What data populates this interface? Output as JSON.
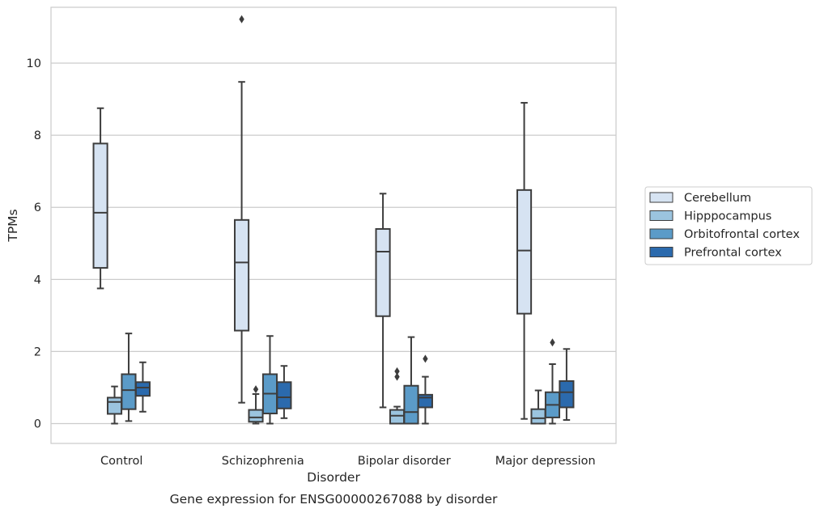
{
  "chart_data": {
    "type": "box",
    "caption": "Gene expression for ENSG00000267088 by disorder",
    "xlabel": "Disorder",
    "ylabel": "TPMs",
    "ylim": [
      -0.55,
      11.55
    ],
    "yticks": [
      0,
      2,
      4,
      6,
      8,
      10
    ],
    "grid": true,
    "legend_position": "right",
    "categories": [
      "Control",
      "Schizophrenia",
      "Bipolar disorder",
      "Major depression"
    ],
    "series": [
      {
        "name": "Cerebellum",
        "color": "#d6e3f2",
        "boxes": [
          {
            "whislo": 3.75,
            "q1": 4.32,
            "med": 5.85,
            "q3": 7.77,
            "whishi": 8.75,
            "fliers": []
          },
          {
            "whislo": 0.58,
            "q1": 2.58,
            "med": 4.47,
            "q3": 5.65,
            "whishi": 9.48,
            "fliers": [
              11.22
            ]
          },
          {
            "whislo": 0.45,
            "q1": 2.98,
            "med": 4.77,
            "q3": 5.4,
            "whishi": 6.38,
            "fliers": []
          },
          {
            "whislo": 0.13,
            "q1": 3.05,
            "med": 4.8,
            "q3": 6.48,
            "whishi": 8.9,
            "fliers": []
          }
        ]
      },
      {
        "name": "Hipppocampus",
        "color": "#9bc4df",
        "boxes": [
          {
            "whislo": 0.0,
            "q1": 0.27,
            "med": 0.6,
            "q3": 0.72,
            "whishi": 1.03,
            "fliers": []
          },
          {
            "whislo": 0.0,
            "q1": 0.05,
            "med": 0.17,
            "q3": 0.38,
            "whishi": 0.82,
            "fliers": [
              0.95
            ]
          },
          {
            "whislo": 0.0,
            "q1": 0.0,
            "med": 0.22,
            "q3": 0.38,
            "whishi": 0.47,
            "fliers": [
              1.3,
              1.45
            ]
          },
          {
            "whislo": 0.0,
            "q1": 0.0,
            "med": 0.15,
            "q3": 0.4,
            "whishi": 0.92,
            "fliers": []
          }
        ]
      },
      {
        "name": "Orbitofrontal cortex",
        "color": "#5b9bc8",
        "boxes": [
          {
            "whislo": 0.07,
            "q1": 0.4,
            "med": 0.93,
            "q3": 1.37,
            "whishi": 2.5,
            "fliers": []
          },
          {
            "whislo": 0.0,
            "q1": 0.28,
            "med": 0.83,
            "q3": 1.37,
            "whishi": 2.43,
            "fliers": []
          },
          {
            "whislo": 0.0,
            "q1": 0.0,
            "med": 0.32,
            "q3": 1.05,
            "whishi": 2.4,
            "fliers": []
          },
          {
            "whislo": 0.0,
            "q1": 0.17,
            "med": 0.52,
            "q3": 0.87,
            "whishi": 1.65,
            "fliers": [
              2.25
            ]
          }
        ]
      },
      {
        "name": "Prefrontal cortex",
        "color": "#2b6aad",
        "boxes": [
          {
            "whislo": 0.33,
            "q1": 0.77,
            "med": 1.0,
            "q3": 1.15,
            "whishi": 1.7,
            "fliers": []
          },
          {
            "whislo": 0.15,
            "q1": 0.42,
            "med": 0.73,
            "q3": 1.15,
            "whishi": 1.6,
            "fliers": []
          },
          {
            "whislo": 0.0,
            "q1": 0.45,
            "med": 0.72,
            "q3": 0.8,
            "whishi": 1.3,
            "fliers": [
              1.8
            ]
          },
          {
            "whislo": 0.1,
            "q1": 0.45,
            "med": 0.87,
            "q3": 1.18,
            "whishi": 2.07,
            "fliers": []
          }
        ]
      }
    ]
  }
}
